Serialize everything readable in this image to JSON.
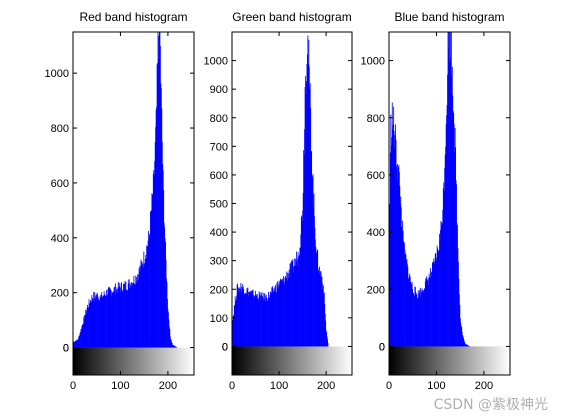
{
  "watermark": "CSDN @紫极神光",
  "chart_data": [
    {
      "type": "bar",
      "title": "Red band histogram",
      "color": "#0000ff",
      "xlim": [
        0,
        255
      ],
      "ylim": [
        -100,
        1150
      ],
      "xticks": [
        0,
        100,
        200
      ],
      "yticks": [
        0,
        200,
        400,
        600,
        800,
        1000
      ],
      "x": [
        0,
        10,
        20,
        30,
        40,
        50,
        60,
        70,
        80,
        90,
        100,
        110,
        120,
        130,
        140,
        150,
        160,
        170,
        175,
        180,
        183,
        186,
        190,
        195,
        200,
        205,
        210,
        220,
        255
      ],
      "values": [
        20,
        30,
        90,
        150,
        185,
        190,
        185,
        200,
        205,
        215,
        220,
        225,
        235,
        250,
        280,
        330,
        400,
        600,
        800,
        1150,
        1150,
        900,
        600,
        350,
        150,
        40,
        10,
        0,
        0
      ]
    },
    {
      "type": "bar",
      "title": "Green band histogram",
      "color": "#0000ff",
      "xlim": [
        0,
        255
      ],
      "ylim": [
        -100,
        1100
      ],
      "xticks": [
        0,
        100,
        200
      ],
      "yticks": [
        0,
        100,
        200,
        300,
        400,
        500,
        600,
        700,
        800,
        900,
        1000
      ],
      "x": [
        0,
        5,
        10,
        20,
        30,
        40,
        50,
        60,
        70,
        80,
        90,
        100,
        110,
        120,
        130,
        140,
        145,
        150,
        155,
        160,
        165,
        170,
        175,
        180,
        185,
        190,
        195,
        200,
        205,
        255
      ],
      "values": [
        80,
        150,
        200,
        210,
        195,
        185,
        180,
        175,
        170,
        180,
        200,
        220,
        230,
        260,
        280,
        320,
        380,
        500,
        900,
        1100,
        900,
        650,
        450,
        330,
        270,
        250,
        200,
        60,
        0,
        0
      ]
    },
    {
      "type": "bar",
      "title": "Blue band histogram",
      "color": "#0000ff",
      "xlim": [
        0,
        255
      ],
      "ylim": [
        -100,
        1100
      ],
      "xticks": [
        0,
        100,
        200
      ],
      "yticks": [
        0,
        200,
        400,
        600,
        800,
        1000
      ],
      "x": [
        0,
        3,
        6,
        10,
        15,
        20,
        25,
        30,
        40,
        50,
        60,
        70,
        80,
        90,
        100,
        105,
        110,
        115,
        120,
        125,
        130,
        135,
        140,
        145,
        150,
        155,
        160,
        170,
        255
      ],
      "values": [
        400,
        760,
        800,
        760,
        680,
        600,
        480,
        350,
        260,
        200,
        180,
        200,
        230,
        260,
        320,
        360,
        420,
        550,
        800,
        1100,
        1100,
        900,
        650,
        350,
        100,
        40,
        10,
        0,
        0
      ]
    }
  ]
}
